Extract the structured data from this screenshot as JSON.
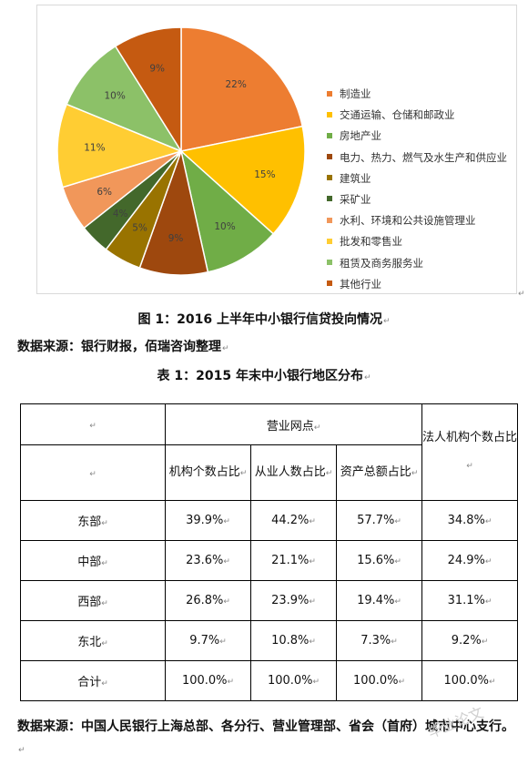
{
  "chart_data": {
    "type": "pie",
    "title": "",
    "categories": [
      "制造业",
      "交通运输、仓储和邮政业",
      "房地产业",
      "电力、热力、燃气及水生产和供应业",
      "建筑业",
      "采矿业",
      "水利、环境和公共设施管理业",
      "批发和零售业",
      "租赁及商务服务业",
      "其他行业"
    ],
    "values": [
      22,
      15,
      10,
      9,
      5,
      4,
      6,
      11,
      10,
      9
    ],
    "data_labels": [
      "22%",
      "15%",
      "10%",
      "9%",
      "5%",
      "4%",
      "6%",
      "11%",
      "10%",
      "9%"
    ],
    "colors": [
      "#ED7D31",
      "#FFC000",
      "#70AD47",
      "#9E480E",
      "#997300",
      "#43682B",
      "#F1975A",
      "#FFCD33",
      "#8CC168",
      "#C55A11"
    ],
    "legend_position": "right"
  },
  "figure_caption": "图 1：2016 上半年中小银行信贷投向情况",
  "figure_source": "数据来源：银行财报，佰瑞咨询整理",
  "table_caption": "表 1：2015 年末中小银行地区分布",
  "table": {
    "group_header": "营业网点",
    "legal_header": "法人机构个数占比",
    "sub_headers": [
      "机构个数占比",
      "从业人数占比",
      "资产总额占比"
    ],
    "rows": [
      {
        "region": "东部",
        "values": [
          "39.9%",
          "44.2%",
          "57.7%",
          "34.8%"
        ]
      },
      {
        "region": "中部",
        "values": [
          "23.6%",
          "21.1%",
          "15.6%",
          "24.9%"
        ]
      },
      {
        "region": "西部",
        "values": [
          "26.8%",
          "23.9%",
          "19.4%",
          "31.1%"
        ]
      },
      {
        "region": "东北",
        "values": [
          "9.7%",
          "10.8%",
          "7.3%",
          "9.2%"
        ]
      },
      {
        "region": "合计",
        "values": [
          "100.0%",
          "100.0%",
          "100.0%",
          "100.0%"
        ]
      }
    ]
  },
  "table_source": "数据来源：中国人民银行上海总部、各分行、营业管理部、省会（首府）城市中心支行。",
  "paragraph_mark": "↵",
  "watermark": "毕业论文"
}
